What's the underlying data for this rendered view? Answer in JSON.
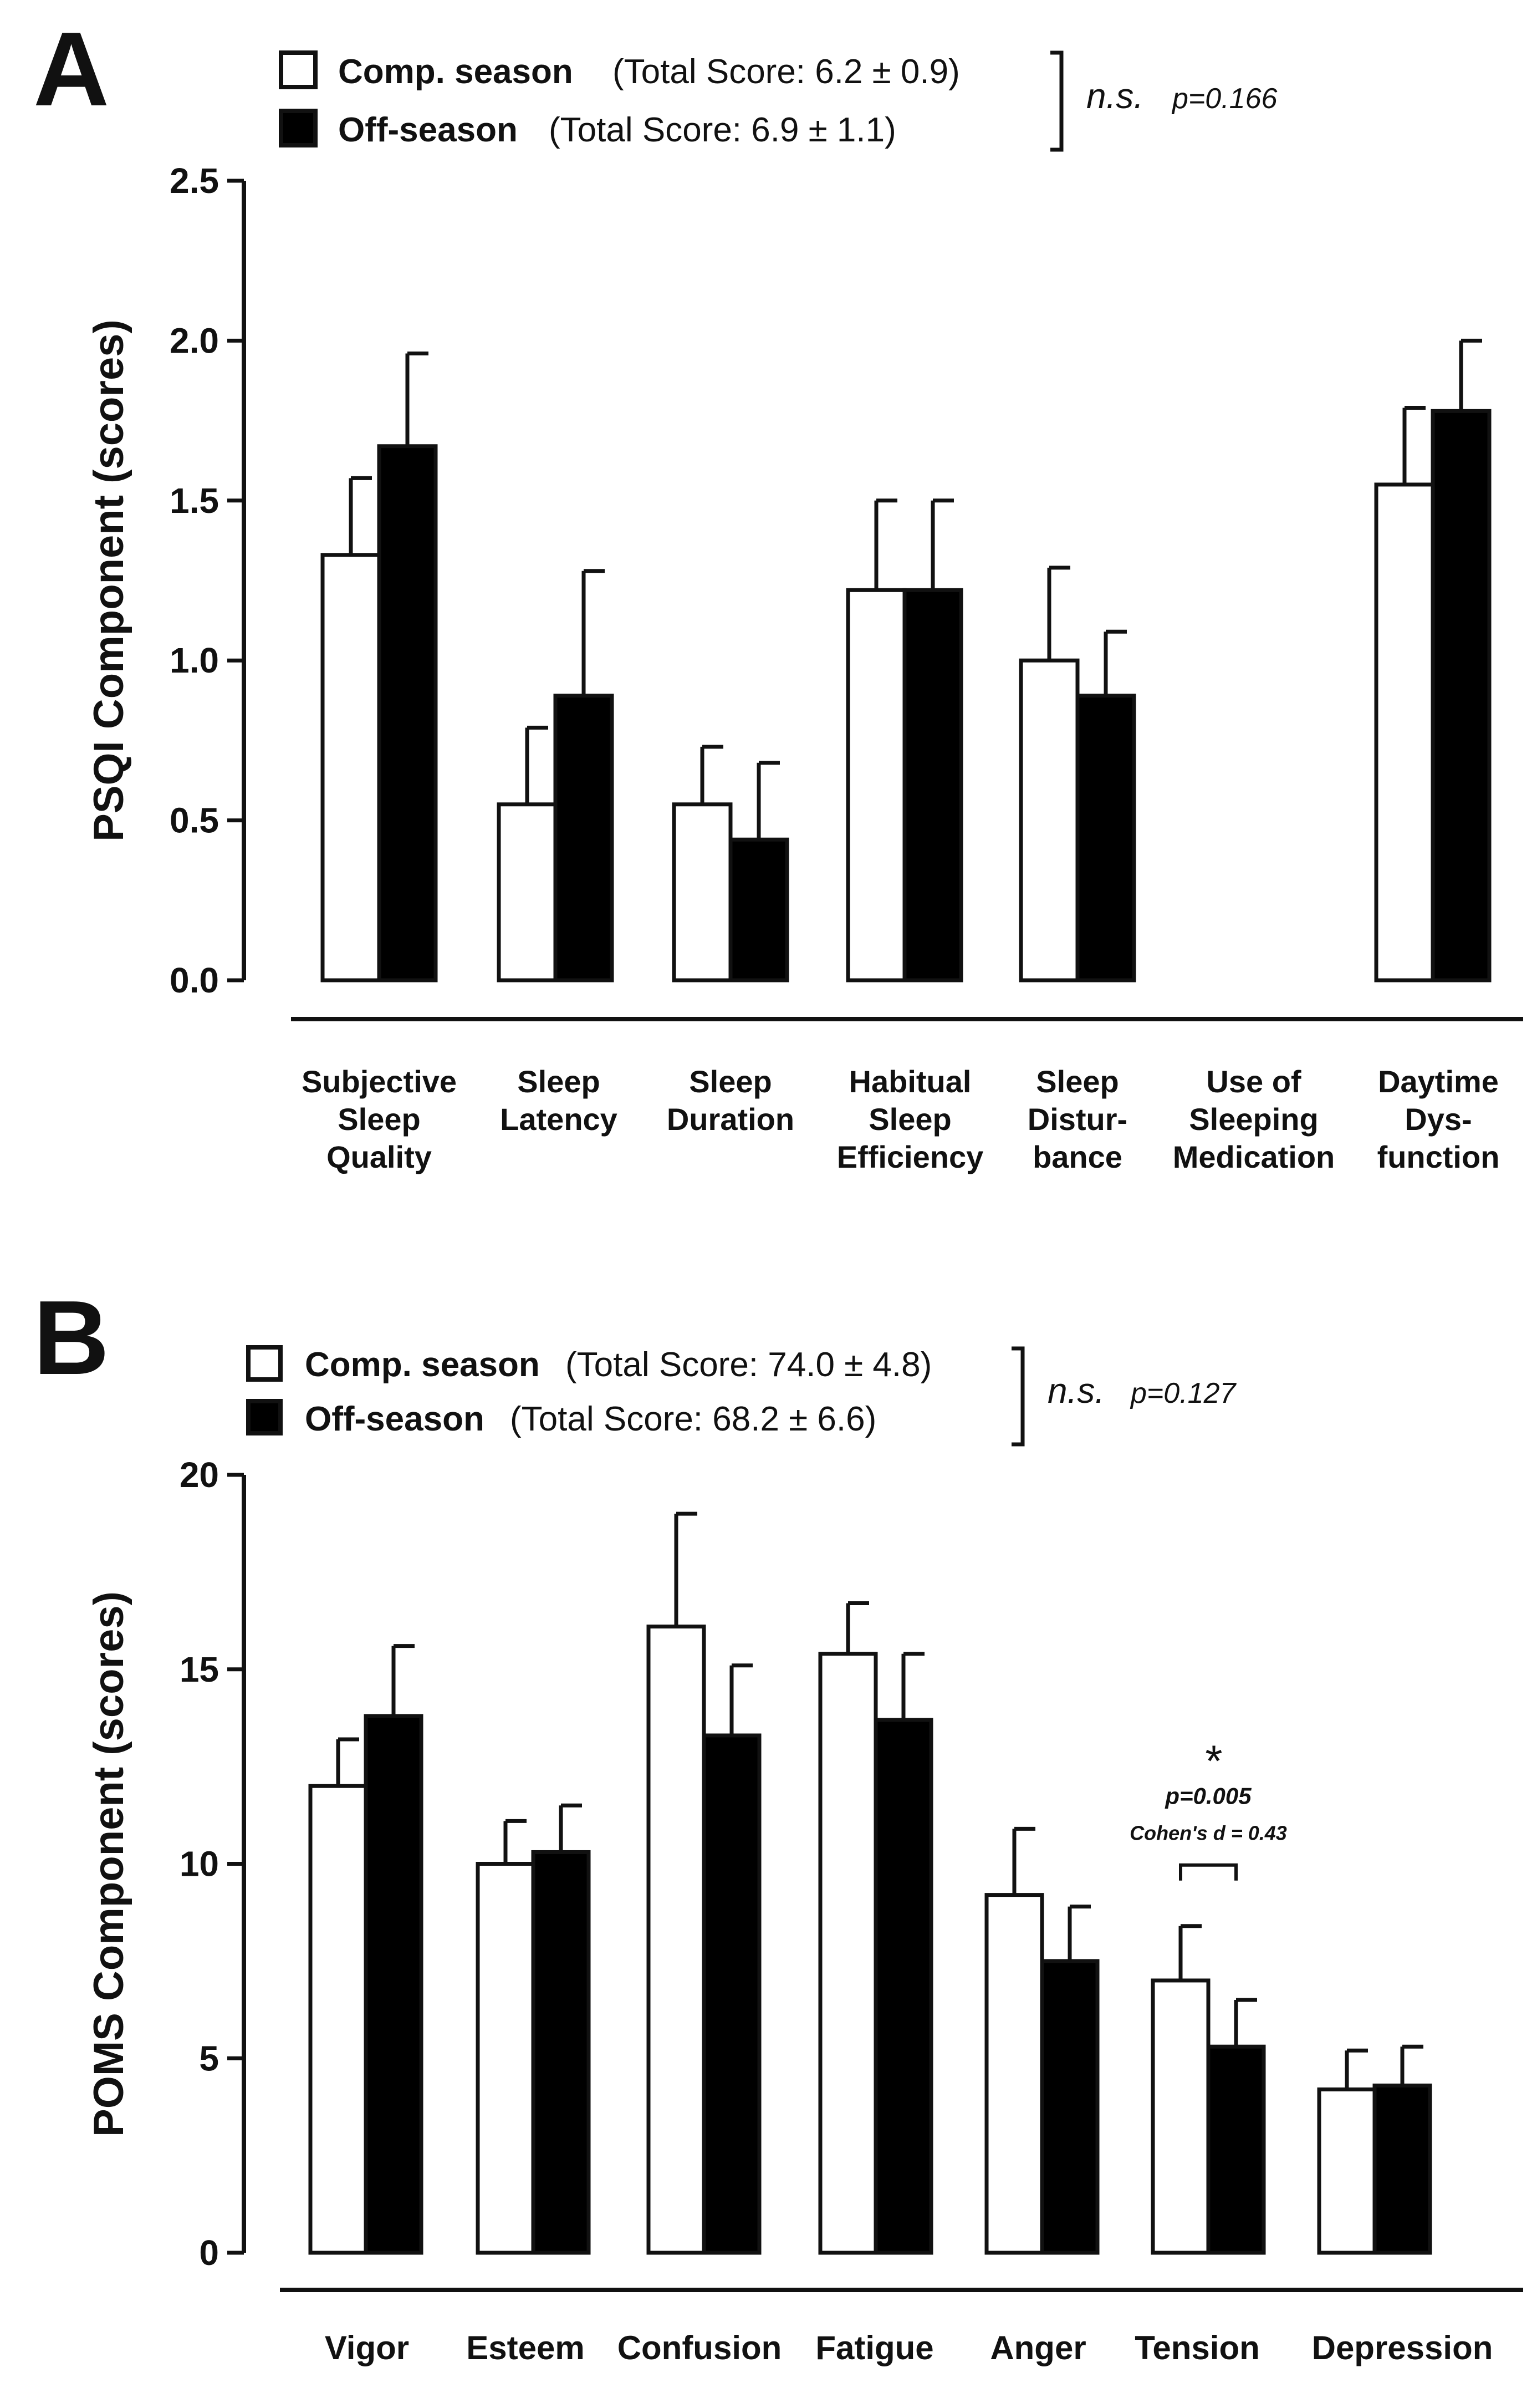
{
  "chart_data": [
    {
      "panel": "A",
      "type": "bar",
      "ylabel": "PSQI Component (scores)",
      "ylim": [
        0,
        2.5
      ],
      "yticks": [
        "0.0",
        "0.5",
        "1.0",
        "1.5",
        "2.0",
        "2.5"
      ],
      "categories": [
        [
          "Subjective",
          "Sleep",
          "Quality"
        ],
        [
          "Sleep",
          "Latency"
        ],
        [
          "Sleep",
          "Duration"
        ],
        [
          "Habitual",
          "Sleep",
          "Efficiency"
        ],
        [
          "Sleep",
          "Distur-",
          "bance"
        ],
        [
          "Use of",
          "Sleeping",
          "Medication"
        ],
        [
          "Daytime",
          "Dys-",
          "function"
        ]
      ],
      "legend": [
        {
          "name": "Comp. season",
          "total": "(Total Score: 6.2 ±   0.9)",
          "color": "#ffffff"
        },
        {
          "name": "Off-season",
          "total": "(Total Score: 6.9 ±   1.1)",
          "color": "#000000"
        }
      ],
      "series": [
        {
          "name": "Comp. season",
          "values": [
            1.33,
            0.55,
            0.55,
            1.22,
            1.0,
            0,
            1.55
          ],
          "errors": [
            0.24,
            0.24,
            0.18,
            0.28,
            0.29,
            0,
            0.24
          ]
        },
        {
          "name": "Off-season",
          "values": [
            1.67,
            0.89,
            0.44,
            1.22,
            0.89,
            0,
            1.78
          ],
          "errors": [
            0.29,
            0.39,
            0.24,
            0.28,
            0.2,
            0,
            0.22
          ]
        }
      ],
      "annotation": {
        "ns": "n.s.",
        "p": "p=0.166"
      }
    },
    {
      "panel": "B",
      "type": "bar",
      "ylabel": "POMS Component (scores)",
      "ylim": [
        0,
        20
      ],
      "yticks": [
        "0",
        "5",
        "10",
        "15",
        "20"
      ],
      "categories": [
        [
          "Vigor"
        ],
        [
          "Esteem"
        ],
        [
          "Confusion"
        ],
        [
          "Fatigue"
        ],
        [
          "Anger"
        ],
        [
          "Tension"
        ],
        [
          "Depression"
        ]
      ],
      "legend": [
        {
          "name": "Comp. season",
          "total": "(Total Score: 74.0 ±   4.8)",
          "color": "#ffffff"
        },
        {
          "name": "Off-season",
          "total": "(Total Score: 68.2 ±   6.6)",
          "color": "#000000"
        }
      ],
      "series": [
        {
          "name": "Comp. season",
          "values": [
            12.0,
            10.0,
            16.1,
            15.4,
            9.2,
            7.0,
            4.2
          ],
          "errors": [
            1.2,
            1.1,
            2.9,
            1.3,
            1.7,
            1.4,
            1.0
          ]
        },
        {
          "name": "Off-season",
          "values": [
            13.8,
            10.3,
            13.3,
            13.7,
            7.5,
            5.3,
            4.3
          ],
          "errors": [
            1.8,
            1.2,
            1.8,
            1.7,
            1.4,
            1.2,
            1.0
          ]
        }
      ],
      "annotation": {
        "ns": "n.s.",
        "p": "p=0.127"
      },
      "significance": {
        "category": "Tension",
        "star": "*",
        "p": "p=0.005",
        "effect": "Cohen's d = 0.43"
      }
    }
  ]
}
